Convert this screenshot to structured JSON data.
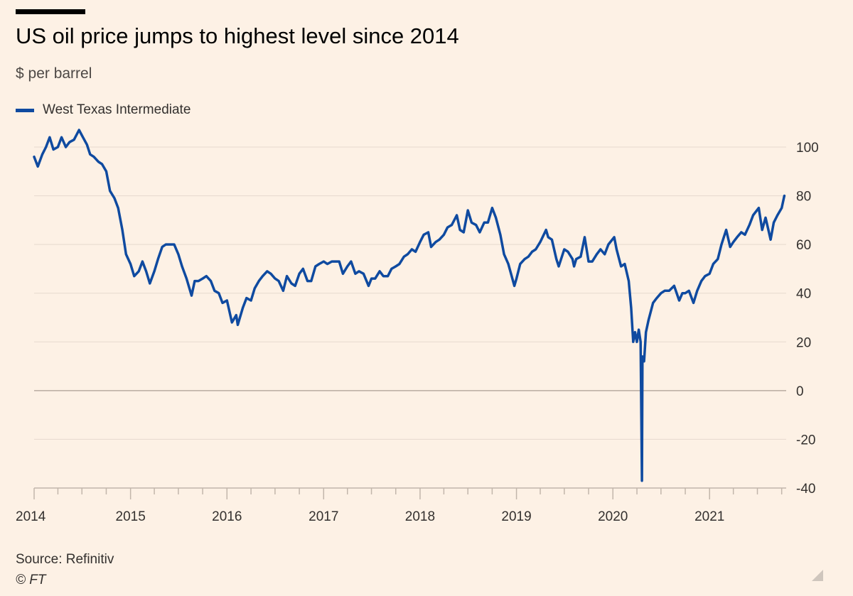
{
  "header": {
    "title": "US oil price jumps to highest level since 2014",
    "subtitle": "$ per barrel"
  },
  "footer": {
    "source": "Source: Refinitiv",
    "copyright": "© FT"
  },
  "colors": {
    "background": "#fdf1e5",
    "series": "#0f4aa0",
    "gridline": "#e6d9ce",
    "zero_line": "#b8aba0",
    "axis": "#c2b6ab"
  },
  "chart_data": {
    "type": "line",
    "title": "US oil price jumps to highest level since 2014",
    "subtitle": "$ per barrel",
    "ylabel": "",
    "xlabel": "",
    "ylim": [
      -40,
      110
    ],
    "xlim": [
      "2014-01-01",
      "2021-10-15"
    ],
    "yticks": [
      100,
      80,
      60,
      40,
      20,
      0,
      -20,
      -40
    ],
    "xticks": [
      "2014",
      "2015",
      "2016",
      "2017",
      "2018",
      "2019",
      "2020",
      "2021"
    ],
    "grid": true,
    "legend": "top-left",
    "series": [
      {
        "name": "West Texas Intermediate",
        "points": [
          [
            "2014-01-01",
            96
          ],
          [
            "2014-01-15",
            92
          ],
          [
            "2014-02-01",
            97
          ],
          [
            "2014-02-15",
            100
          ],
          [
            "2014-03-01",
            104
          ],
          [
            "2014-03-15",
            99
          ],
          [
            "2014-04-01",
            100
          ],
          [
            "2014-04-15",
            104
          ],
          [
            "2014-05-01",
            100
          ],
          [
            "2014-05-15",
            102
          ],
          [
            "2014-06-01",
            103
          ],
          [
            "2014-06-20",
            107
          ],
          [
            "2014-07-05",
            104
          ],
          [
            "2014-07-20",
            101
          ],
          [
            "2014-08-01",
            97
          ],
          [
            "2014-08-15",
            96
          ],
          [
            "2014-09-01",
            94
          ],
          [
            "2014-09-15",
            93
          ],
          [
            "2014-10-01",
            90
          ],
          [
            "2014-10-15",
            82
          ],
          [
            "2014-11-01",
            79
          ],
          [
            "2014-11-15",
            75
          ],
          [
            "2014-12-01",
            66
          ],
          [
            "2014-12-15",
            56
          ],
          [
            "2015-01-01",
            52
          ],
          [
            "2015-01-15",
            47
          ],
          [
            "2015-02-01",
            49
          ],
          [
            "2015-02-15",
            53
          ],
          [
            "2015-03-01",
            49
          ],
          [
            "2015-03-15",
            44
          ],
          [
            "2015-04-01",
            49
          ],
          [
            "2015-04-15",
            54
          ],
          [
            "2015-05-01",
            59
          ],
          [
            "2015-05-15",
            60
          ],
          [
            "2015-06-01",
            60
          ],
          [
            "2015-06-15",
            60
          ],
          [
            "2015-07-01",
            56
          ],
          [
            "2015-07-15",
            51
          ],
          [
            "2015-08-01",
            46
          ],
          [
            "2015-08-20",
            39
          ],
          [
            "2015-09-01",
            45
          ],
          [
            "2015-09-15",
            45
          ],
          [
            "2015-10-01",
            46
          ],
          [
            "2015-10-15",
            47
          ],
          [
            "2015-11-01",
            45
          ],
          [
            "2015-11-15",
            41
          ],
          [
            "2015-12-01",
            40
          ],
          [
            "2015-12-15",
            36
          ],
          [
            "2016-01-01",
            37
          ],
          [
            "2016-01-20",
            28
          ],
          [
            "2016-02-05",
            31
          ],
          [
            "2016-02-11",
            27
          ],
          [
            "2016-03-01",
            34
          ],
          [
            "2016-03-15",
            38
          ],
          [
            "2016-04-01",
            37
          ],
          [
            "2016-04-15",
            42
          ],
          [
            "2016-05-01",
            45
          ],
          [
            "2016-05-15",
            47
          ],
          [
            "2016-06-01",
            49
          ],
          [
            "2016-06-15",
            48
          ],
          [
            "2016-07-01",
            46
          ],
          [
            "2016-07-15",
            45
          ],
          [
            "2016-08-01",
            41
          ],
          [
            "2016-08-15",
            47
          ],
          [
            "2016-09-01",
            44
          ],
          [
            "2016-09-15",
            43
          ],
          [
            "2016-10-01",
            48
          ],
          [
            "2016-10-15",
            50
          ],
          [
            "2016-11-01",
            45
          ],
          [
            "2016-11-15",
            45
          ],
          [
            "2016-12-01",
            51
          ],
          [
            "2016-12-15",
            52
          ],
          [
            "2017-01-01",
            53
          ],
          [
            "2017-01-15",
            52
          ],
          [
            "2017-02-01",
            53
          ],
          [
            "2017-02-15",
            53
          ],
          [
            "2017-03-01",
            53
          ],
          [
            "2017-03-15",
            48
          ],
          [
            "2017-04-01",
            51
          ],
          [
            "2017-04-15",
            53
          ],
          [
            "2017-05-01",
            48
          ],
          [
            "2017-05-15",
            49
          ],
          [
            "2017-06-01",
            48
          ],
          [
            "2017-06-20",
            43
          ],
          [
            "2017-07-01",
            46
          ],
          [
            "2017-07-15",
            46
          ],
          [
            "2017-08-01",
            49
          ],
          [
            "2017-08-15",
            47
          ],
          [
            "2017-09-01",
            47
          ],
          [
            "2017-09-15",
            50
          ],
          [
            "2017-10-01",
            51
          ],
          [
            "2017-10-15",
            52
          ],
          [
            "2017-11-01",
            55
          ],
          [
            "2017-11-15",
            56
          ],
          [
            "2017-12-01",
            58
          ],
          [
            "2017-12-15",
            57
          ],
          [
            "2018-01-01",
            61
          ],
          [
            "2018-01-15",
            64
          ],
          [
            "2018-02-01",
            65
          ],
          [
            "2018-02-12",
            59
          ],
          [
            "2018-03-01",
            61
          ],
          [
            "2018-03-15",
            62
          ],
          [
            "2018-04-01",
            64
          ],
          [
            "2018-04-15",
            67
          ],
          [
            "2018-05-01",
            68
          ],
          [
            "2018-05-20",
            72
          ],
          [
            "2018-06-01",
            66
          ],
          [
            "2018-06-15",
            65
          ],
          [
            "2018-07-01",
            74
          ],
          [
            "2018-07-15",
            69
          ],
          [
            "2018-08-01",
            68
          ],
          [
            "2018-08-15",
            65
          ],
          [
            "2018-09-01",
            69
          ],
          [
            "2018-09-15",
            69
          ],
          [
            "2018-10-01",
            75
          ],
          [
            "2018-10-15",
            71
          ],
          [
            "2018-11-01",
            64
          ],
          [
            "2018-11-15",
            56
          ],
          [
            "2018-12-01",
            52
          ],
          [
            "2018-12-24",
            43
          ],
          [
            "2019-01-01",
            46
          ],
          [
            "2019-01-15",
            52
          ],
          [
            "2019-02-01",
            54
          ],
          [
            "2019-02-15",
            55
          ],
          [
            "2019-03-01",
            57
          ],
          [
            "2019-03-15",
            58
          ],
          [
            "2019-04-01",
            61
          ],
          [
            "2019-04-23",
            66
          ],
          [
            "2019-05-01",
            63
          ],
          [
            "2019-05-15",
            62
          ],
          [
            "2019-06-01",
            54
          ],
          [
            "2019-06-10",
            51
          ],
          [
            "2019-07-01",
            58
          ],
          [
            "2019-07-15",
            57
          ],
          [
            "2019-08-01",
            54
          ],
          [
            "2019-08-07",
            51
          ],
          [
            "2019-08-15",
            54
          ],
          [
            "2019-09-01",
            55
          ],
          [
            "2019-09-16",
            63
          ],
          [
            "2019-10-01",
            53
          ],
          [
            "2019-10-15",
            53
          ],
          [
            "2019-11-01",
            56
          ],
          [
            "2019-11-15",
            58
          ],
          [
            "2019-12-01",
            56
          ],
          [
            "2019-12-15",
            60
          ],
          [
            "2020-01-06",
            63
          ],
          [
            "2020-01-15",
            58
          ],
          [
            "2020-02-01",
            51
          ],
          [
            "2020-02-15",
            52
          ],
          [
            "2020-03-01",
            45
          ],
          [
            "2020-03-10",
            34
          ],
          [
            "2020-03-18",
            20
          ],
          [
            "2020-03-25",
            24
          ],
          [
            "2020-04-01",
            20
          ],
          [
            "2020-04-08",
            25
          ],
          [
            "2020-04-15",
            20
          ],
          [
            "2020-04-20",
            -37
          ],
          [
            "2020-04-22",
            14
          ],
          [
            "2020-04-28",
            12
          ],
          [
            "2020-05-05",
            24
          ],
          [
            "2020-05-15",
            29
          ],
          [
            "2020-06-01",
            36
          ],
          [
            "2020-06-15",
            38
          ],
          [
            "2020-07-01",
            40
          ],
          [
            "2020-07-15",
            41
          ],
          [
            "2020-08-01",
            41
          ],
          [
            "2020-08-20",
            43
          ],
          [
            "2020-09-08",
            37
          ],
          [
            "2020-09-20",
            40
          ],
          [
            "2020-10-01",
            40
          ],
          [
            "2020-10-15",
            41
          ],
          [
            "2020-11-01",
            36
          ],
          [
            "2020-11-15",
            41
          ],
          [
            "2020-12-01",
            45
          ],
          [
            "2020-12-15",
            47
          ],
          [
            "2021-01-01",
            48
          ],
          [
            "2021-01-15",
            52
          ],
          [
            "2021-02-01",
            54
          ],
          [
            "2021-02-15",
            60
          ],
          [
            "2021-03-05",
            66
          ],
          [
            "2021-03-20",
            59
          ],
          [
            "2021-04-01",
            61
          ],
          [
            "2021-04-15",
            63
          ],
          [
            "2021-05-01",
            65
          ],
          [
            "2021-05-15",
            64
          ],
          [
            "2021-06-01",
            68
          ],
          [
            "2021-06-15",
            72
          ],
          [
            "2021-07-06",
            75
          ],
          [
            "2021-07-19",
            66
          ],
          [
            "2021-08-01",
            71
          ],
          [
            "2021-08-20",
            62
          ],
          [
            "2021-09-01",
            69
          ],
          [
            "2021-09-15",
            72
          ],
          [
            "2021-10-01",
            75
          ],
          [
            "2021-10-11",
            80
          ]
        ]
      }
    ]
  }
}
